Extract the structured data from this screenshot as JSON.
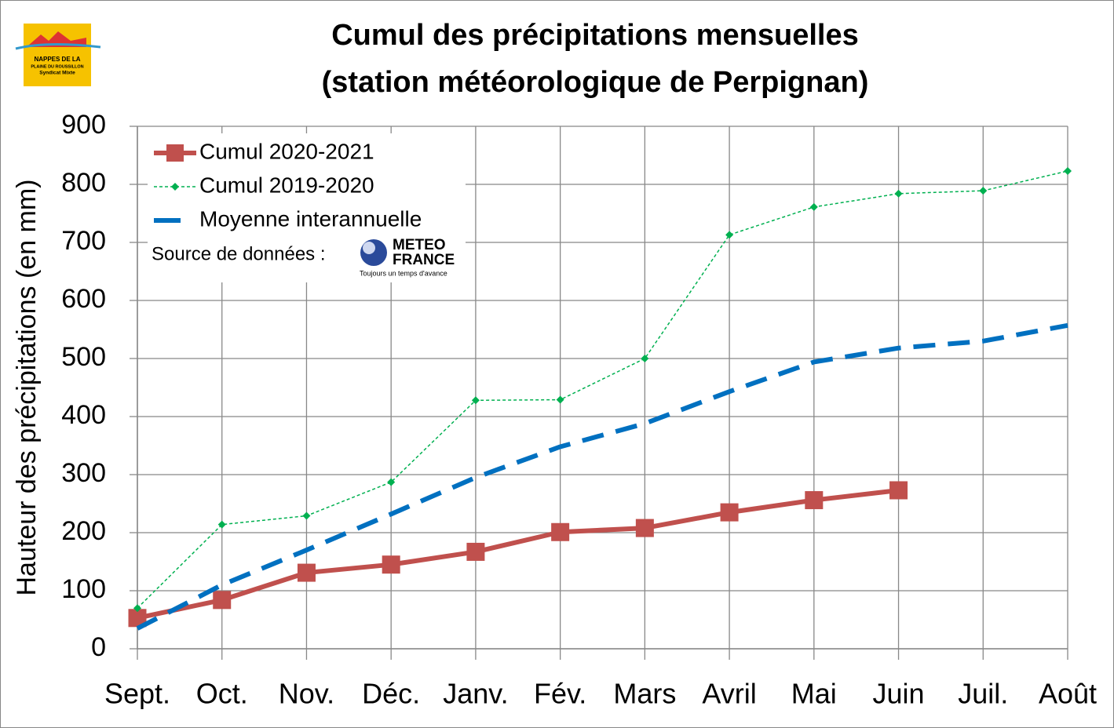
{
  "chart_data": {
    "type": "line",
    "title": "Cumul des précipitations mensuelles",
    "subtitle": "(station météorologique de Perpignan)",
    "y_label": "Hauteur des précipitations (en mm)",
    "categories": [
      "Sept.",
      "Oct.",
      "Nov.",
      "Déc.",
      "Janv.",
      "Fév.",
      "Mars",
      "Avril",
      "Mai",
      "Juin",
      "Juil.",
      "Août"
    ],
    "series": [
      {
        "name": "Cumul 2020-2021",
        "color": "#c0504d",
        "values": [
          53,
          84,
          131,
          145,
          167,
          201,
          208,
          235,
          256,
          273,
          null,
          null
        ]
      },
      {
        "name": "Cumul 2019-2020",
        "color": "#00b050",
        "values": [
          70,
          214,
          229,
          287,
          428,
          429,
          500,
          713,
          761,
          784,
          789,
          823
        ]
      },
      {
        "name": "Moyenne interannuelle",
        "color": "#0070c0",
        "values": [
          35,
          110,
          170,
          232,
          295,
          348,
          388,
          443,
          494,
          518,
          530,
          557
        ]
      }
    ],
    "ylim": [
      0,
      900
    ],
    "yticks": [
      0,
      100,
      200,
      300,
      400,
      500,
      600,
      700,
      800,
      900
    ],
    "grid": true,
    "legend": "top-left",
    "source_label": "Source de données :",
    "source_logo": [
      "METEO",
      "FRANCE",
      "Toujours un temps d'avance"
    ],
    "org_logo": [
      "NAPPES DE LA",
      "PLAINE DU ROUSSILLON",
      "Syndicat Mixte"
    ]
  }
}
